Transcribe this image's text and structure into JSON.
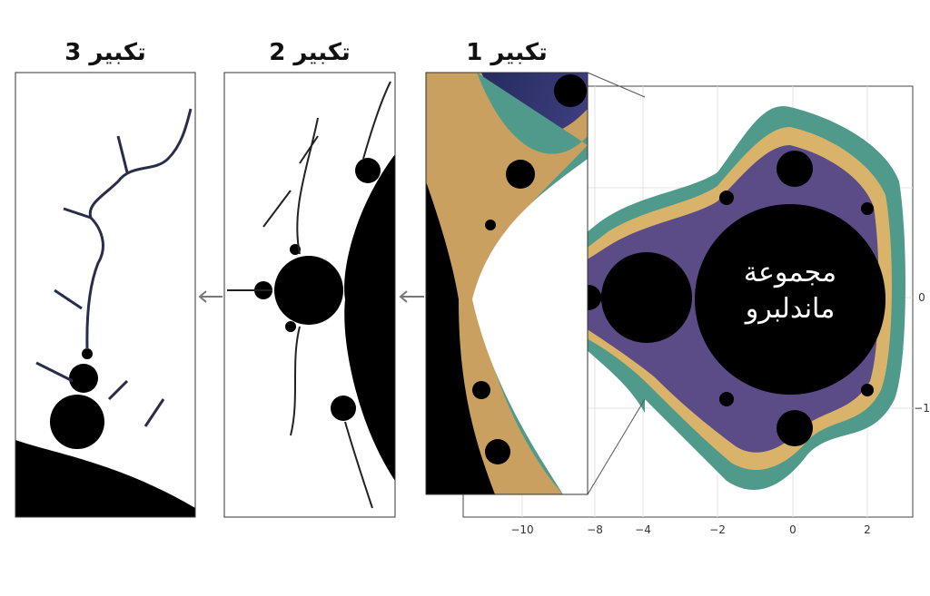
{
  "panels": [
    {
      "title": "تكبير 3"
    },
    {
      "title": "تكبير 2"
    },
    {
      "title": "تكبير 1"
    }
  ],
  "main": {
    "label": [
      "مجموعة",
      "ماندلبرو"
    ],
    "x_ticks": [
      "−10",
      "−8",
      "−4",
      "−2",
      "0",
      "2"
    ],
    "y_ticks": [
      "0",
      "−1"
    ]
  }
}
